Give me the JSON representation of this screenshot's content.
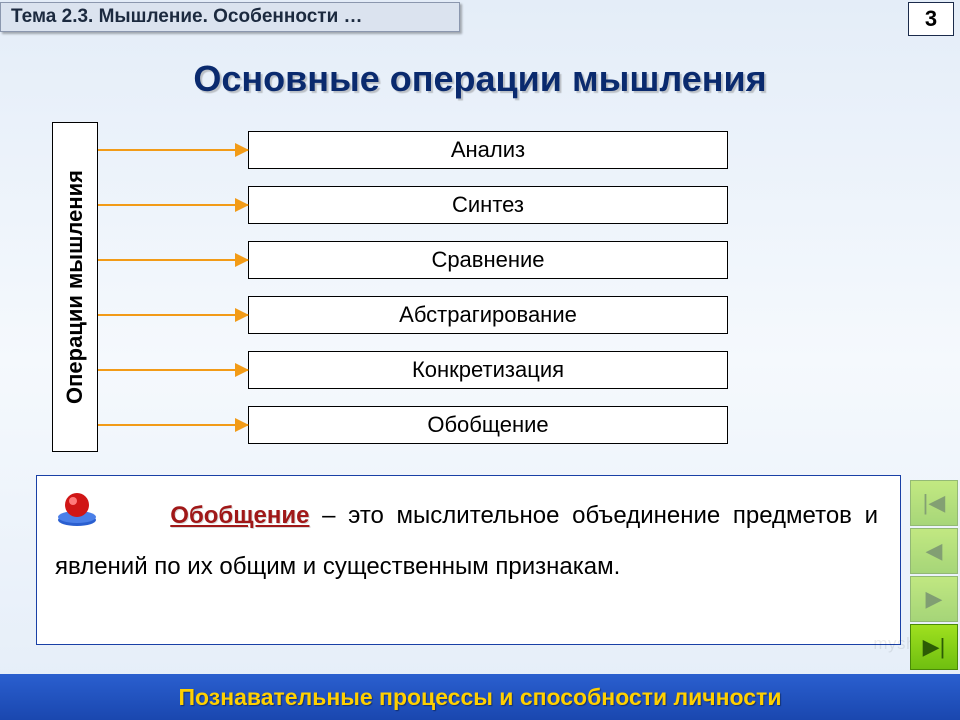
{
  "header": {
    "topic": "Тема 2.3. Мышление. Особенности …",
    "page_number": "3"
  },
  "title": "Основные операции мышления",
  "diagram": {
    "side_label": "Операции мышления",
    "arrows": [
      {
        "color": "#f29b17"
      },
      {
        "color": "#f29b17"
      },
      {
        "color": "#f29b17"
      },
      {
        "color": "#f29b17"
      },
      {
        "color": "#f29b17"
      },
      {
        "color": "#f29b17"
      }
    ],
    "operations": [
      "Анализ",
      "Синтез",
      "Сравнение",
      "Абстрагирование",
      "Конкретизация",
      "Обобщение"
    ],
    "box_border": "#000000",
    "box_bg": "#ffffff",
    "op_fontsize": 22
  },
  "definition": {
    "term": "Обобщение",
    "text": " – это мыслительное объединение предметов и явлений по их общим и существенным признакам.",
    "icon_colors": {
      "ball": "#d01616",
      "tray": "#2a5fd0"
    }
  },
  "footer": "Познавательные процессы и способности личности",
  "nav": {
    "first": "|◀",
    "prev": "◀",
    "next": "▶",
    "last": "▶|"
  },
  "watermark": "myshared",
  "palette": {
    "bg_top": "#e4edf8",
    "title_color": "#0a2a6e",
    "footer_bg": "#1a47af",
    "footer_text": "#ffd000",
    "nav_bg": "#8fd017"
  }
}
